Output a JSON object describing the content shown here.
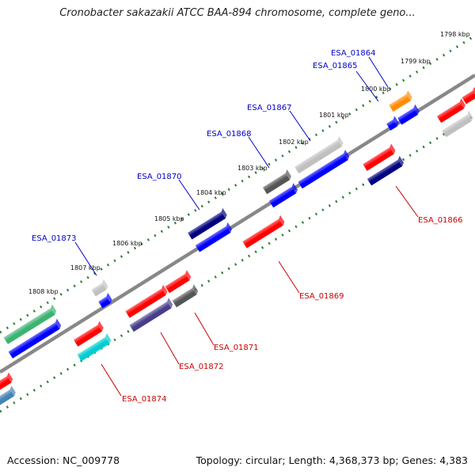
{
  "title": "Cronobacter sakazakii ATCC BAA-894 chromosome, complete geno...",
  "footer": {
    "accession": "Accession: NC_009778",
    "info": "Topology: circular; Length: 4,368,373 bp; Genes: 4,383"
  },
  "kbp_ticks": [
    "1798 kbp",
    "1799 kbp",
    "1800 kbp",
    "1801 kbp",
    "1802 kbp",
    "1803 kbp",
    "1804 kbp",
    "1805 kbp",
    "1806 kbp",
    "1807 kbp",
    "1808 kbp"
  ],
  "genes_forward": [
    {
      "name": "ESA_01864",
      "color": "#ff8c00"
    },
    {
      "name": "ESA_01865",
      "color": "#0000ff"
    },
    {
      "name": "ESA_01867",
      "color": "#c0c0c0"
    },
    {
      "name": "ESA_01868",
      "color": "#555555"
    },
    {
      "name": "ESA_01870",
      "color": "#000080"
    },
    {
      "name": "ESA_01873",
      "color": "#c0c0c0"
    }
  ],
  "genes_reverse": [
    {
      "name": "ESA_01866",
      "color": "#ff0000"
    },
    {
      "name": "ESA_01869",
      "color": "#ff0000"
    },
    {
      "name": "ESA_01871",
      "color": "#555555"
    },
    {
      "name": "ESA_01872",
      "color": "#ff0000"
    },
    {
      "name": "ESA_01874",
      "color": "#ff0000"
    }
  ],
  "colors": {
    "forward_label": "#0000cc",
    "reverse_label": "#cc0000",
    "backbone": "#888888",
    "tick_green": "#2e7d32"
  }
}
